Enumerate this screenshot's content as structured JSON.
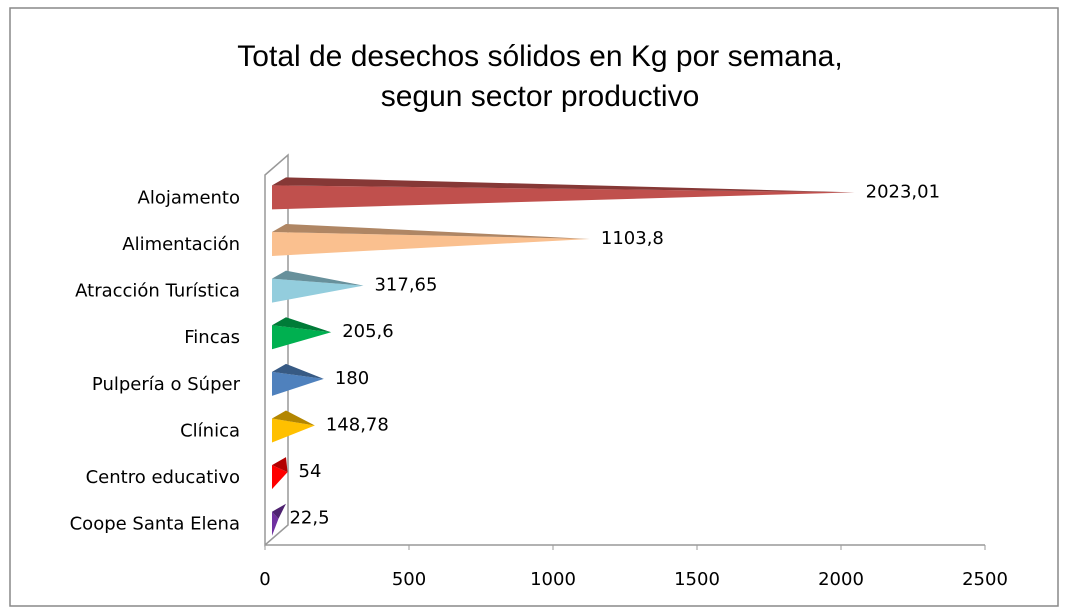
{
  "chart_data": {
    "type": "bar",
    "orientation": "horizontal",
    "title": [
      "Total de desechos sólidos en Kg por semana,",
      "segun sector productivo"
    ],
    "categories": [
      "Alojamento",
      "Alimentación",
      "Atracción Turística",
      "Fincas",
      "Pulpería o Súper",
      "Clínica",
      "Centro educativo",
      "Coope Santa Elena"
    ],
    "values": [
      2023.01,
      1103.8,
      317.65,
      205.6,
      180,
      148.78,
      54,
      22.5
    ],
    "value_labels": [
      "2023,01",
      "1103,8",
      "317,65",
      "205,6",
      "180",
      "148,78",
      "54",
      "22,5"
    ],
    "colors": [
      "#c0504d",
      "#fac08f",
      "#93cddd",
      "#00b050",
      "#4f81bd",
      "#ffc000",
      "#ff0000",
      "#7030a0"
    ],
    "xlim": [
      0,
      2500
    ],
    "xticks": [
      0,
      500,
      1000,
      1500,
      2000,
      2500
    ]
  }
}
